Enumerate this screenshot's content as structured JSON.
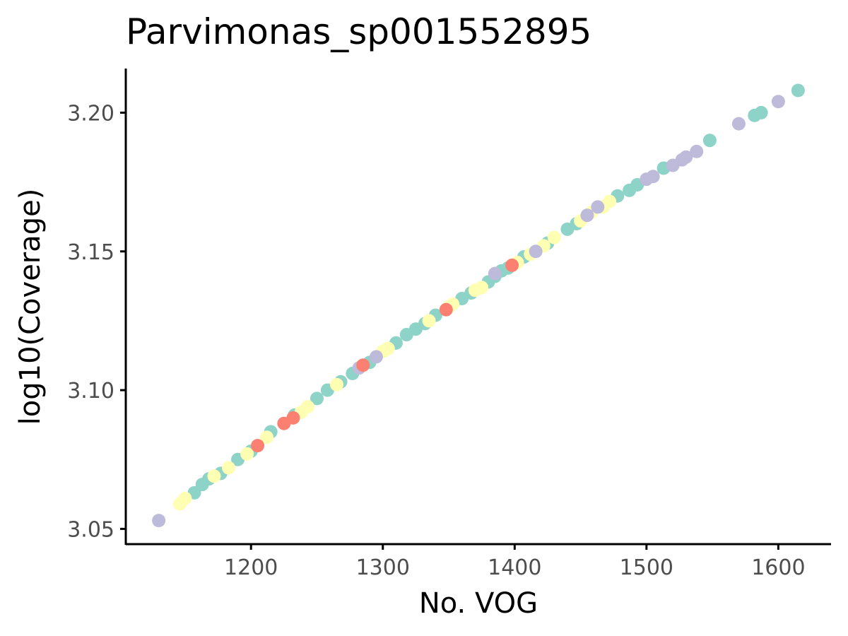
{
  "chart_data": {
    "type": "scatter",
    "title": "Parvimonas_sp001552895",
    "xlabel": "No. VOG",
    "ylabel": "log10(Coverage)",
    "xlim": [
      1105,
      1640
    ],
    "ylim": [
      3.0445,
      3.2159
    ],
    "x_ticks": [
      1200,
      1300,
      1400,
      1500,
      1600
    ],
    "x_tick_labels": [
      "1200",
      "1300",
      "1400",
      "1500",
      "1600"
    ],
    "y_ticks": [
      3.05,
      3.1,
      3.15,
      3.2
    ],
    "y_tick_labels": [
      "3.05",
      "3.10",
      "3.15",
      "3.20"
    ],
    "grid": false,
    "legend": "none",
    "series": [
      {
        "color": "#8dd3c7",
        "points": [
          [
            1157,
            3.063
          ],
          [
            1163,
            3.066
          ],
          [
            1168,
            3.068
          ],
          [
            1177,
            3.07
          ],
          [
            1190,
            3.075
          ],
          [
            1200,
            3.078
          ],
          [
            1215,
            3.085
          ],
          [
            1233,
            3.091
          ],
          [
            1250,
            3.097
          ],
          [
            1258,
            3.1
          ],
          [
            1268,
            3.103
          ],
          [
            1277,
            3.106
          ],
          [
            1290,
            3.11
          ],
          [
            1310,
            3.117
          ],
          [
            1318,
            3.12
          ],
          [
            1325,
            3.122
          ],
          [
            1332,
            3.124
          ],
          [
            1340,
            3.127
          ],
          [
            1360,
            3.133
          ],
          [
            1367,
            3.135
          ],
          [
            1380,
            3.139
          ],
          [
            1385,
            3.141
          ],
          [
            1390,
            3.143
          ],
          [
            1395,
            3.144
          ],
          [
            1407,
            3.148
          ],
          [
            1425,
            3.153
          ],
          [
            1440,
            3.158
          ],
          [
            1447,
            3.16
          ],
          [
            1478,
            3.17
          ],
          [
            1487,
            3.172
          ],
          [
            1493,
            3.174
          ],
          [
            1513,
            3.18
          ],
          [
            1548,
            3.19
          ],
          [
            1582,
            3.199
          ],
          [
            1587,
            3.2
          ],
          [
            1615,
            3.208
          ]
        ]
      },
      {
        "color": "#ffffb3",
        "points": [
          [
            1146,
            3.059
          ],
          [
            1150,
            3.061
          ],
          [
            1172,
            3.069
          ],
          [
            1183,
            3.072
          ],
          [
            1197,
            3.077
          ],
          [
            1212,
            3.083
          ],
          [
            1238,
            3.092
          ],
          [
            1243,
            3.094
          ],
          [
            1265,
            3.102
          ],
          [
            1300,
            3.114
          ],
          [
            1304,
            3.115
          ],
          [
            1335,
            3.125
          ],
          [
            1350,
            3.13
          ],
          [
            1353,
            3.131
          ],
          [
            1370,
            3.136
          ],
          [
            1375,
            3.137
          ],
          [
            1402,
            3.146
          ],
          [
            1412,
            3.149
          ],
          [
            1422,
            3.152
          ],
          [
            1430,
            3.155
          ],
          [
            1450,
            3.161
          ],
          [
            1458,
            3.164
          ],
          [
            1467,
            3.166
          ],
          [
            1472,
            3.168
          ]
        ]
      },
      {
        "color": "#bebada",
        "points": [
          [
            1130,
            3.053
          ],
          [
            1282,
            3.108
          ],
          [
            1295,
            3.112
          ],
          [
            1385,
            3.142
          ],
          [
            1416,
            3.15
          ],
          [
            1455,
            3.163
          ],
          [
            1463,
            3.166
          ],
          [
            1500,
            3.176
          ],
          [
            1505,
            3.177
          ],
          [
            1520,
            3.181
          ],
          [
            1527,
            3.183
          ],
          [
            1530,
            3.184
          ],
          [
            1538,
            3.186
          ],
          [
            1570,
            3.196
          ],
          [
            1600,
            3.204
          ]
        ]
      },
      {
        "color": "#fb8072",
        "points": [
          [
            1205,
            3.08
          ],
          [
            1225,
            3.088
          ],
          [
            1232,
            3.09
          ],
          [
            1285,
            3.109
          ],
          [
            1348,
            3.129
          ],
          [
            1398,
            3.145
          ]
        ]
      }
    ]
  }
}
